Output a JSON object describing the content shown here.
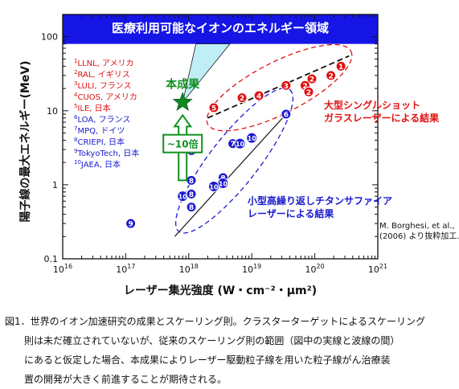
{
  "chart_data": {
    "type": "scatter",
    "title": "",
    "xlabel": "レーザー集光強度 (W・cm⁻²・μm²)",
    "ylabel": "陽子線の最大エネルギー(MeV)",
    "x_scale": "log",
    "y_scale": "log",
    "xlim": [
      1e+16,
      1e+21
    ],
    "ylim": [
      0.1,
      200
    ],
    "x_tick_exponents": [
      "16",
      "17",
      "18",
      "19",
      "20",
      "21"
    ],
    "y_tick_labels": [
      "0.1",
      "1",
      "10",
      "100"
    ],
    "banner_text": "医療利用可能なイオンのエネルギー領域",
    "banner_threshold_mev": 80,
    "this_result_label": "本成果",
    "this_result_point": {
      "x": 8e+17,
      "y": 13
    },
    "improvement_label": "~10倍",
    "legend": [
      {
        "num": "1",
        "name": "LLNL, アメリカ",
        "color": "#dd1111"
      },
      {
        "num": "2",
        "name": "RAL, イギリス",
        "color": "#dd1111"
      },
      {
        "num": "3",
        "name": "LULI, フランス",
        "color": "#dd1111"
      },
      {
        "num": "4",
        "name": "CUOS, アメリカ",
        "color": "#dd1111"
      },
      {
        "num": "5",
        "name": "ILE, 日本",
        "color": "#dd1111"
      },
      {
        "num": "6",
        "name": "LOA, フランス",
        "color": "#1a1ad0"
      },
      {
        "num": "7",
        "name": "MPQ, ドイツ",
        "color": "#1a1ad0"
      },
      {
        "num": "8",
        "name": "CRIEPI, 日本",
        "color": "#1a1ad0"
      },
      {
        "num": "9",
        "name": "TokyoTech, 日本",
        "color": "#1a1ad0"
      },
      {
        "num": "10",
        "name": "JAEA, 日本",
        "color": "#1a1ad0"
      }
    ],
    "group_labels": {
      "single_shot": [
        "大型シングルショット",
        "ガラスレーザーによる結果"
      ],
      "high_rep": [
        "小型高繰り返しチタンサファイア",
        "レーザーによる結果"
      ]
    },
    "source_note": [
      "M. Borghesi, et al.,",
      "(2006) より抜粋加工."
    ],
    "series": [
      {
        "name": "大型シングルショットガラスレーザーによる結果",
        "color": "#e01010",
        "points": [
          {
            "label": "1",
            "x": 2.6e+20,
            "y": 40
          },
          {
            "label": "2",
            "x": 1.8e+20,
            "y": 30
          },
          {
            "label": "2",
            "x": 9e+19,
            "y": 27
          },
          {
            "label": "3",
            "x": 3.5e+19,
            "y": 22
          },
          {
            "label": "2",
            "x": 7e+19,
            "y": 22
          },
          {
            "label": "2",
            "x": 8e+19,
            "y": 18
          },
          {
            "label": "4",
            "x": 1.3e+19,
            "y": 16
          },
          {
            "label": "2",
            "x": 7e+18,
            "y": 15
          },
          {
            "label": "5",
            "x": 2.5e+18,
            "y": 11
          }
        ]
      },
      {
        "name": "小型高繰り返しチタンサファイアレーザーによる結果",
        "color": "#1a1ad0",
        "points": [
          {
            "label": "6",
            "x": 3.5e+19,
            "y": 9
          },
          {
            "label": "7",
            "x": 5e+18,
            "y": 3.6
          },
          {
            "label": "10",
            "x": 6.5e+18,
            "y": 3.6
          },
          {
            "label": "10",
            "x": 1e+19,
            "y": 4.3
          },
          {
            "label": "8",
            "x": 1.1e+18,
            "y": 2.9
          },
          {
            "label": "8",
            "x": 3.5e+18,
            "y": 1.25
          },
          {
            "label": "10",
            "x": 3.5e+18,
            "y": 1.05
          },
          {
            "label": "10",
            "x": 2.5e+18,
            "y": 0.95
          },
          {
            "label": "8",
            "x": 1.1e+18,
            "y": 1.15
          },
          {
            "label": "10",
            "x": 8e+17,
            "y": 0.7
          },
          {
            "label": "8",
            "x": 1.1e+18,
            "y": 0.75
          },
          {
            "label": "8",
            "x": 1.1e+18,
            "y": 0.5
          },
          {
            "label": "9",
            "x": 1.2e+17,
            "y": 0.3
          }
        ]
      }
    ]
  },
  "caption": {
    "line1": "図1．世界のイオン加速研究の成果とスケーリング則。クラスターターゲットによるスケーリング",
    "line2": "則は未だ確立されていないが、従来のスケーリング則の範囲（図中の実線と波線の間）",
    "line3": "にあると仮定した場合、本成果によりレーザー駆動粒子線を用いた粒子線がん治療装",
    "line4": "置の開発が大きく前進することが期待される。"
  }
}
